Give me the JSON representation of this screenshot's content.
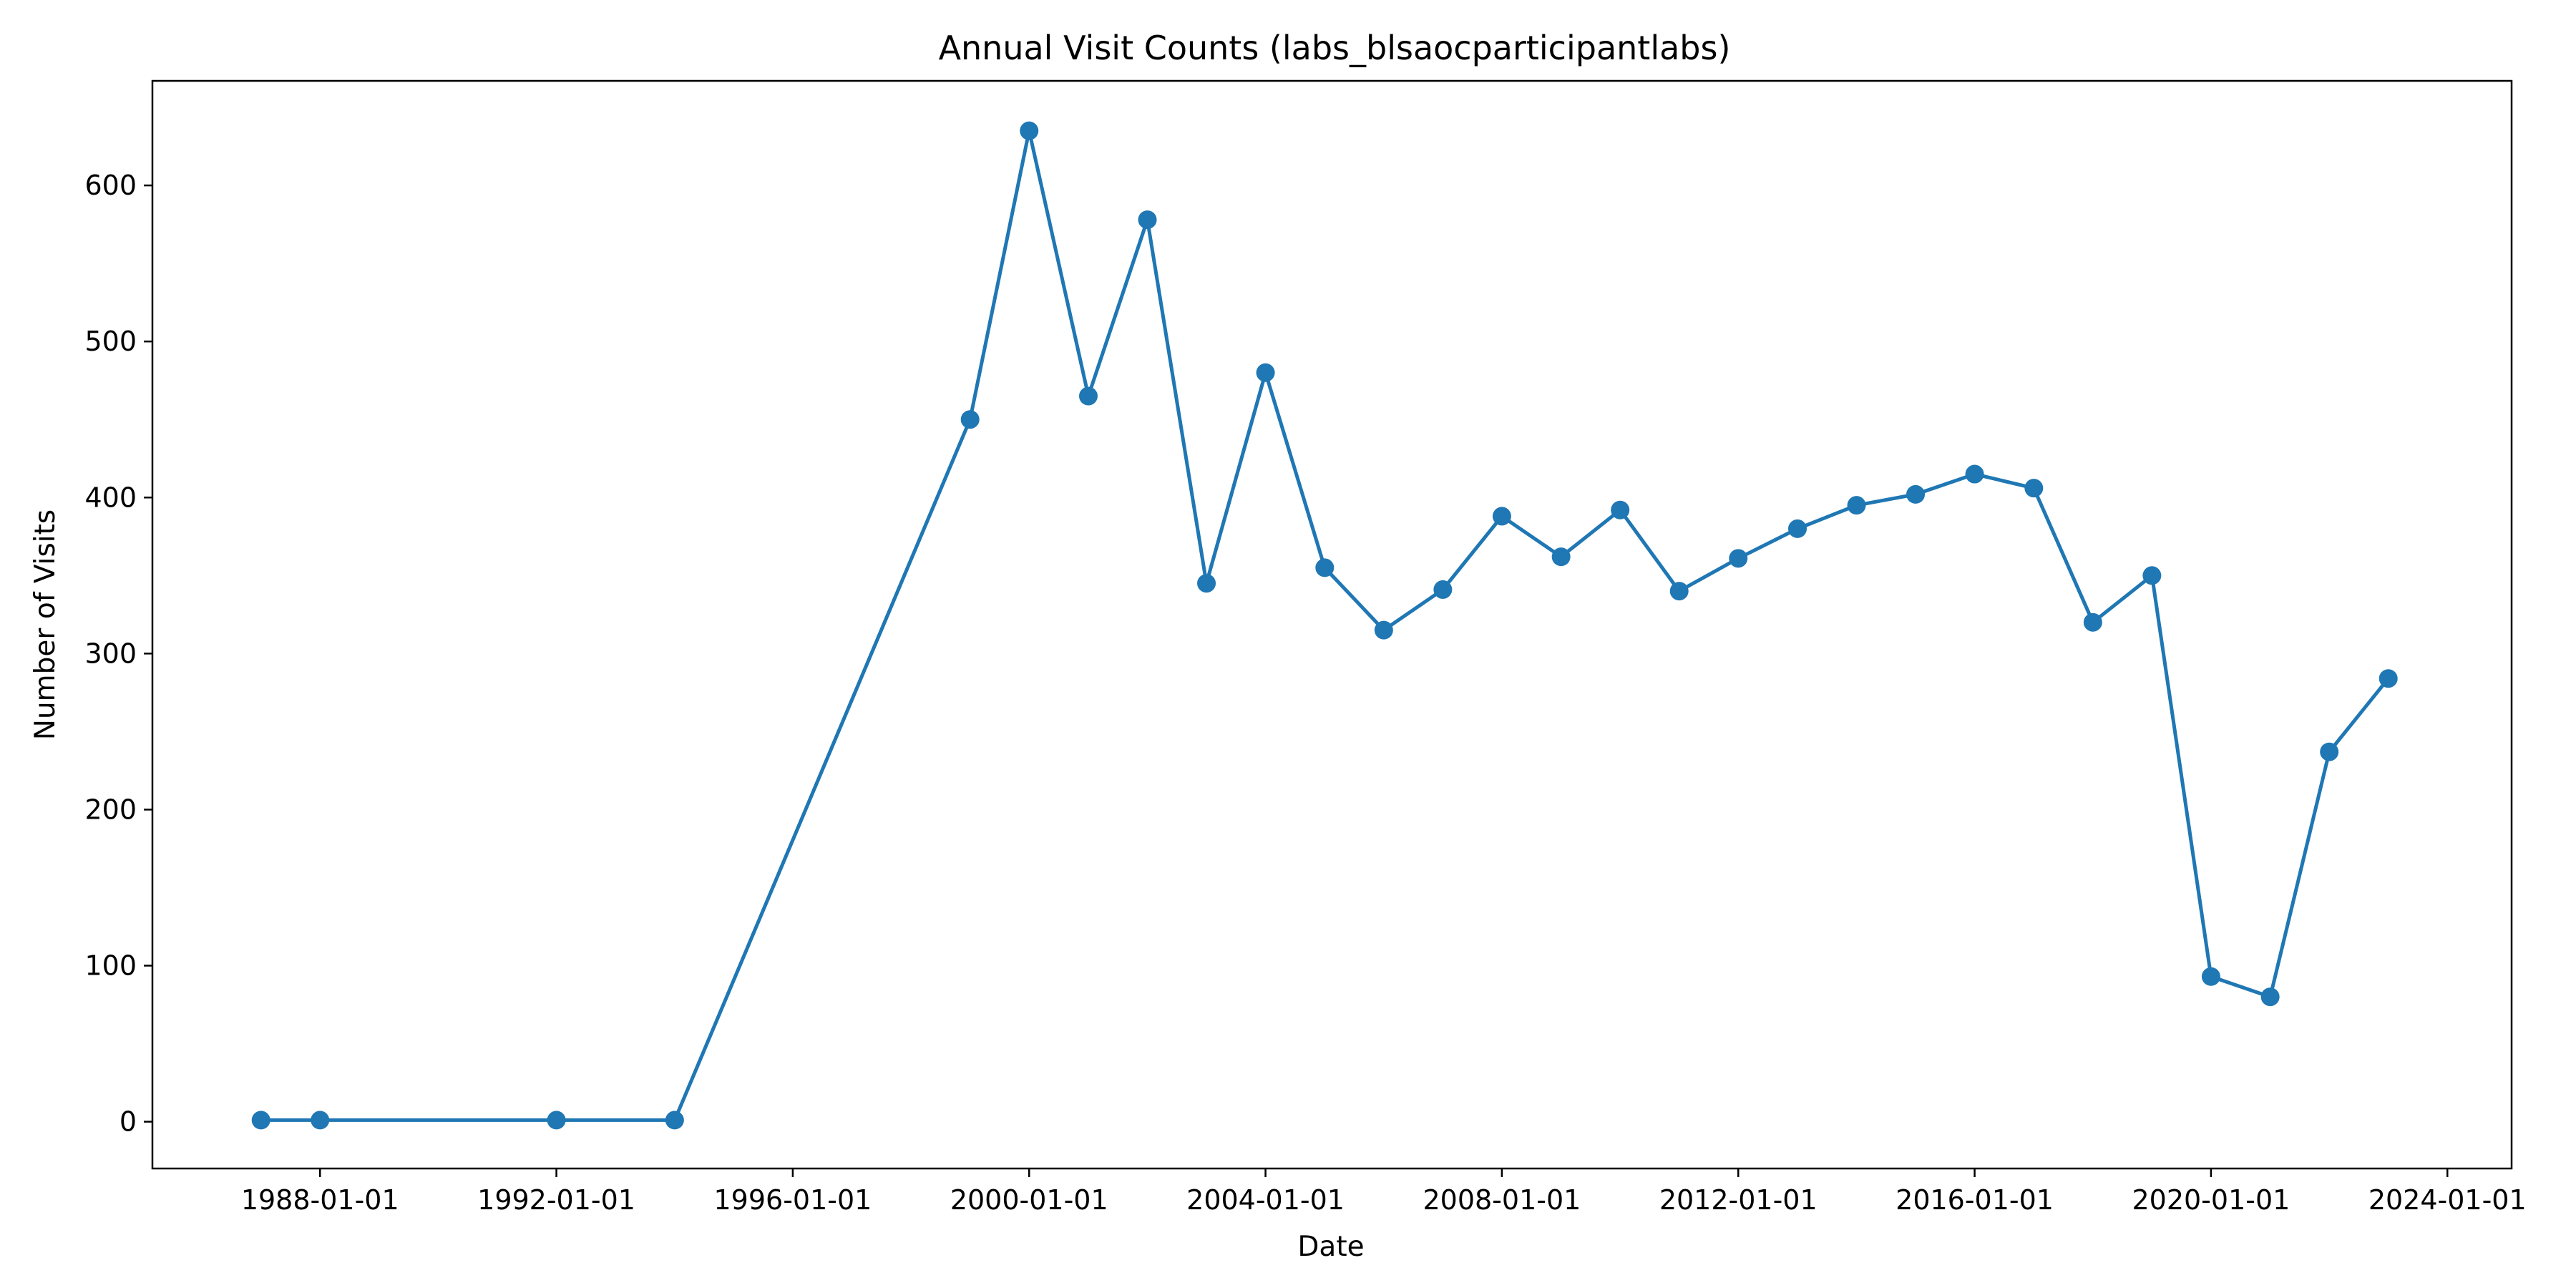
{
  "chart_data": {
    "type": "line",
    "title": "Annual Visit Counts (labs_blsaocparticipantlabs)",
    "xlabel": "Date",
    "ylabel": "Number of Visits",
    "grid": false,
    "legend": "none",
    "color": "#1f77b4",
    "xlim": [
      "1985-03-01",
      "2025-02-01"
    ],
    "ylim": [
      -30,
      667
    ],
    "x_ticks": [
      "1988-01-01",
      "1992-01-01",
      "1996-01-01",
      "2000-01-01",
      "2004-01-01",
      "2008-01-01",
      "2012-01-01",
      "2016-01-01",
      "2020-01-01",
      "2024-01-01"
    ],
    "y_ticks": [
      0,
      100,
      200,
      300,
      400,
      500,
      600
    ],
    "x": [
      "1987-01-01",
      "1988-01-01",
      "1992-01-01",
      "1994-01-01",
      "1999-01-01",
      "2000-01-01",
      "2001-01-01",
      "2002-01-01",
      "2003-01-01",
      "2004-01-01",
      "2005-01-01",
      "2006-01-01",
      "2007-01-01",
      "2008-01-01",
      "2009-01-01",
      "2010-01-01",
      "2011-01-01",
      "2012-01-01",
      "2013-01-01",
      "2014-01-01",
      "2015-01-01",
      "2016-01-01",
      "2017-01-01",
      "2018-01-01",
      "2019-01-01",
      "2020-01-01",
      "2021-01-01",
      "2022-01-01",
      "2023-01-01"
    ],
    "y": [
      1,
      1,
      1,
      1,
      450,
      635,
      465,
      578,
      345,
      480,
      355,
      315,
      341,
      388,
      362,
      392,
      340,
      361,
      380,
      395,
      402,
      415,
      406,
      320,
      350,
      93,
      80,
      237,
      284
    ]
  }
}
